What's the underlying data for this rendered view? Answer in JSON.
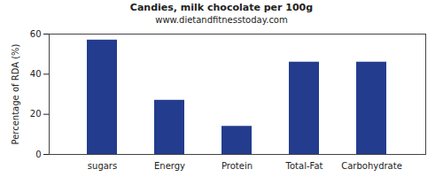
{
  "chart_data": {
    "type": "bar",
    "title": "Candies, milk chocolate per 100g",
    "subtitle": "www.dietandfitnesstoday.com",
    "y_label": "Percentage of RDA (%)",
    "categories": [
      "sugars",
      "Energy",
      "Protein",
      "Total-Fat",
      "Carbohydrate"
    ],
    "values": [
      57,
      27,
      14,
      46,
      46
    ],
    "color": "#233c8e",
    "ylim": [
      0,
      60
    ],
    "yticks": [
      0,
      20,
      40,
      60
    ],
    "grid": false
  }
}
